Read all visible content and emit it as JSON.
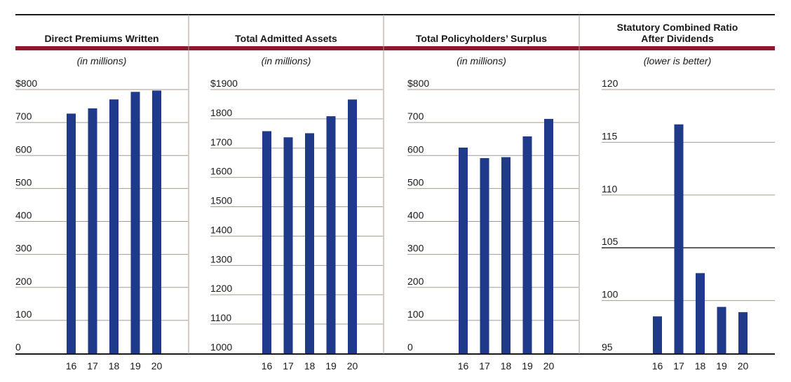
{
  "colors": {
    "bar": "#1f3a8a",
    "accent_rule": "#8b1a2e",
    "grid": "#a89a8a",
    "frame": "#1a1a1a",
    "divider": "#a89a8a"
  },
  "chart_data": [
    {
      "type": "bar",
      "title": "Direct Premiums Written",
      "subtitle": "(in millions)",
      "categories": [
        "16",
        "17",
        "18",
        "19",
        "20"
      ],
      "values": [
        727,
        743,
        770,
        793,
        797
      ],
      "ylim": [
        0,
        800
      ],
      "ytick_labels": [
        "0",
        "100",
        "200",
        "300",
        "400",
        "500",
        "600",
        "700",
        "$800"
      ],
      "grid": true
    },
    {
      "type": "bar",
      "title": "Total Admitted Assets",
      "subtitle": "(in millions)",
      "categories": [
        "16",
        "17",
        "18",
        "19",
        "20"
      ],
      "values": [
        1758,
        1737,
        1751,
        1809,
        1866
      ],
      "ylim": [
        1000,
        1900
      ],
      "ytick_labels": [
        "1000",
        "1100",
        "1200",
        "1300",
        "1400",
        "1500",
        "1600",
        "1700",
        "1800",
        "$1900"
      ],
      "grid": true
    },
    {
      "type": "bar",
      "title": "Total Policyholders’ Surplus",
      "subtitle": "(in millions)",
      "categories": [
        "16",
        "17",
        "18",
        "19",
        "20"
      ],
      "values": [
        624,
        592,
        595,
        658,
        711
      ],
      "ylim": [
        0,
        800
      ],
      "ytick_labels": [
        "0",
        "100",
        "200",
        "300",
        "400",
        "500",
        "600",
        "700",
        "$800"
      ],
      "grid": true
    },
    {
      "type": "bar",
      "title_lines": [
        "Statutory Combined Ratio",
        "After Dividends"
      ],
      "subtitle": "(lower is better)",
      "categories": [
        "16",
        "17",
        "18",
        "19",
        "20"
      ],
      "values": [
        98.5,
        116.7,
        102.6,
        99.4,
        98.9
      ],
      "ylim": [
        95,
        120
      ],
      "ytick_labels": [
        "95",
        "100",
        "105",
        "110",
        "115",
        "120"
      ],
      "reference_line": 105,
      "grid": true
    }
  ]
}
